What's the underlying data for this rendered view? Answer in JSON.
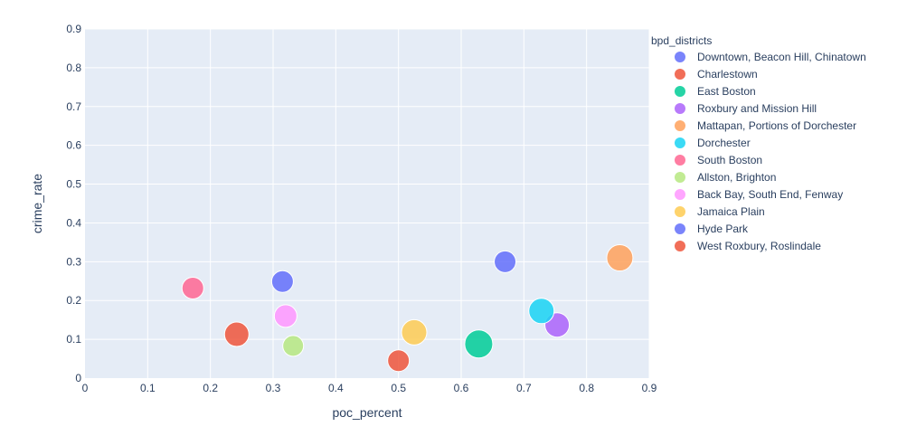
{
  "chart_data": {
    "type": "scatter",
    "xlabel": "poc_percent",
    "ylabel": "crime_rate",
    "xlim": [
      0,
      0.9
    ],
    "ylim": [
      0,
      0.9
    ],
    "x_ticks": [
      "0",
      "0.1",
      "0.2",
      "0.3",
      "0.4",
      "0.5",
      "0.6",
      "0.7",
      "0.8",
      "0.9"
    ],
    "y_ticks": [
      "0",
      "0.1",
      "0.2",
      "0.3",
      "0.4",
      "0.5",
      "0.6",
      "0.7",
      "0.8",
      "0.9"
    ],
    "grid": true,
    "legend_title": "bpd_districts",
    "legend_position": "right",
    "series": [
      {
        "name": "Downtown, Beacon Hill, Chinatown",
        "color": "#636efa",
        "x": 0.67,
        "y": 0.3,
        "size": 0.6
      },
      {
        "name": "Charlestown",
        "color": "#ef553b",
        "x": 0.5,
        "y": 0.045,
        "size": 0.6
      },
      {
        "name": "East Boston",
        "color": "#00cc96",
        "x": 0.628,
        "y": 0.088,
        "size": 0.95
      },
      {
        "name": "Roxbury and Mission Hill",
        "color": "#ab63fa",
        "x": 0.753,
        "y": 0.137,
        "size": 0.75
      },
      {
        "name": "Mattapan, Portions of Dorchester",
        "color": "#ffa15a",
        "x": 0.853,
        "y": 0.31,
        "size": 0.85
      },
      {
        "name": "Dorchester",
        "color": "#19d3f3",
        "x": 0.728,
        "y": 0.173,
        "size": 0.8
      },
      {
        "name": "South Boston",
        "color": "#ff6692",
        "x": 0.172,
        "y": 0.232,
        "size": 0.6
      },
      {
        "name": "Allston, Brighton",
        "color": "#b6e880",
        "x": 0.332,
        "y": 0.083,
        "size": 0.55
      },
      {
        "name": "Back Bay, South End, Fenway",
        "color": "#ff97ff",
        "x": 0.32,
        "y": 0.16,
        "size": 0.65
      },
      {
        "name": "Jamaica Plain",
        "color": "#fecb52",
        "x": 0.525,
        "y": 0.118,
        "size": 0.8
      },
      {
        "name": "Hyde Park",
        "color": "#636efa",
        "x": 0.315,
        "y": 0.249,
        "size": 0.6
      },
      {
        "name": "West Roxbury, Roslindale",
        "color": "#ef553b",
        "x": 0.242,
        "y": 0.113,
        "size": 0.75
      }
    ]
  }
}
